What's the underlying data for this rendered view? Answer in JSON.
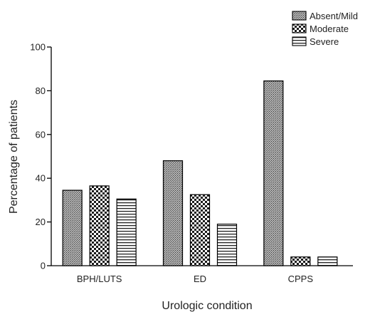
{
  "chart_data": {
    "type": "bar",
    "title": "",
    "xlabel": "Urologic condition",
    "ylabel": "Percentage of patients",
    "categories": [
      "BPH/LUTS",
      "ED",
      "CPPS"
    ],
    "series": [
      {
        "name": "Absent/Mild",
        "values": [
          34.5,
          48,
          84.5
        ],
        "pattern": "fine-dots"
      },
      {
        "name": "Moderate",
        "values": [
          36.5,
          32.5,
          4
        ],
        "pattern": "checker"
      },
      {
        "name": "Severe",
        "values": [
          30.5,
          19,
          4
        ],
        "pattern": "horizontal-lines"
      }
    ],
    "ylim": [
      0,
      100
    ],
    "yticks": [
      0,
      20,
      40,
      60,
      80,
      100
    ],
    "grid": false,
    "legend": "top-right"
  }
}
